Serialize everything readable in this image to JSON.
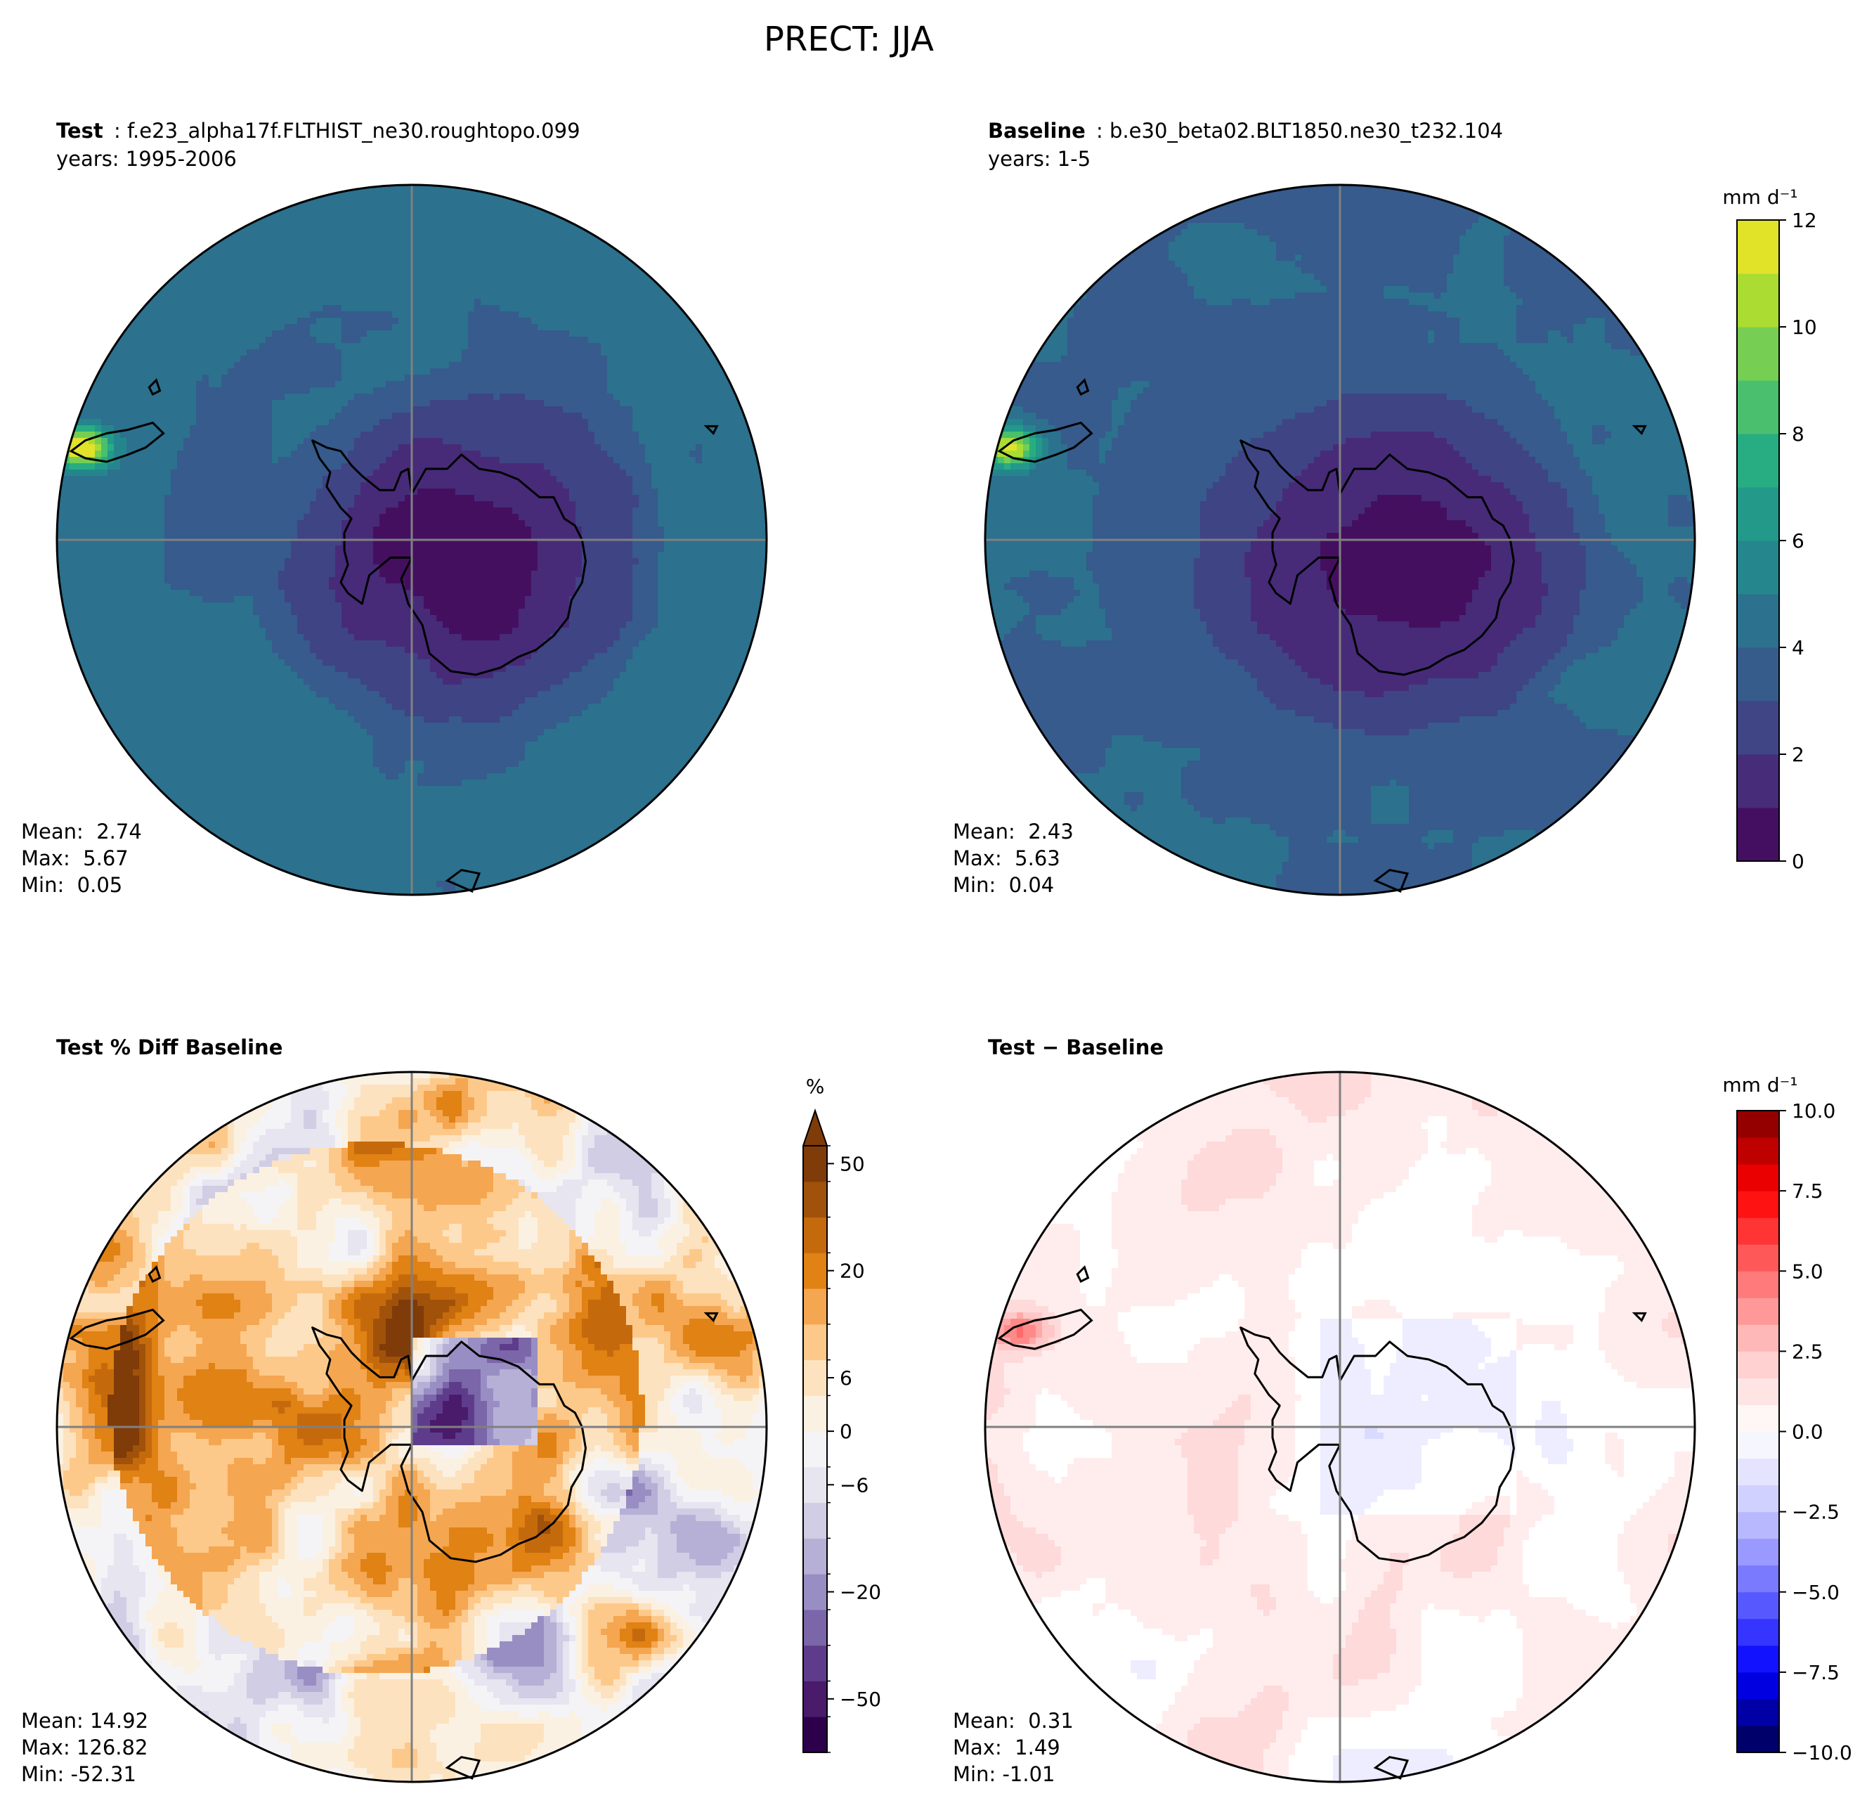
{
  "figure": {
    "title": "PRECT: JJA"
  },
  "colors": {
    "viridis": [
      "#440154",
      "#472c7a",
      "#3b518b",
      "#2c718e",
      "#21908d",
      "#27ad81",
      "#5cc863",
      "#aadc32",
      "#fde725"
    ],
    "prgn_diff": [
      "#2d004b",
      "#4a1a6b",
      "#5e3c8b",
      "#7a66a8",
      "#998ec3",
      "#b7b0d6",
      "#d0cde4",
      "#e6e5f0",
      "#f4f4f7",
      "#fbf1e2",
      "#fde2bf",
      "#fdc98a",
      "#f4a651",
      "#e08214",
      "#c56a0c",
      "#a0520a",
      "#7f3b08"
    ],
    "bwr": [
      "#00004c",
      "#0000ff",
      "#6a6aff",
      "#c8c8ff",
      "#ffffff",
      "#ffc8c8",
      "#ff6a6a",
      "#ff0000",
      "#7f0000"
    ],
    "coast": "#000000",
    "grid": "#808080"
  },
  "panels": [
    {
      "id": "test",
      "label_bold": "Test",
      "label_text": "f.e23_alpha17f.FLTHIST_ne30.roughtopo.099",
      "years": "years: 1995-2006",
      "stats": {
        "mean": "Mean:  2.74",
        "max": "Max:  5.67",
        "min": "Min:  0.05"
      },
      "field": "test"
    },
    {
      "id": "baseline",
      "label_bold": "Baseline",
      "label_text": "b.e30_beta02.BLT1850.ne30_t232.104",
      "years": "years: 1-5",
      "stats": {
        "mean": "Mean:  2.43",
        "max": "Max:  5.63",
        "min": "Min:  0.04"
      },
      "field": "baseline"
    },
    {
      "id": "pctdiff",
      "label_bold": "Test % Diff Baseline",
      "label_text": "",
      "years": "",
      "stats": {
        "mean": "Mean: 14.92",
        "max": "Max: 126.82",
        "min": "Min: -52.31"
      },
      "field": "pctdiff"
    },
    {
      "id": "diff",
      "label_bold": "Test",
      "label_text": "Baseline",
      "years": "",
      "stats": {
        "mean": "Mean:  0.31",
        "max": "Max:  1.49",
        "min": "Min: -1.01"
      },
      "field": "diff"
    }
  ],
  "colorbars": [
    {
      "id": "cb-abs",
      "units": "mm d⁻¹",
      "range": [
        0,
        12
      ],
      "ticks": [
        0,
        2,
        4,
        6,
        8,
        10,
        12
      ],
      "tick_labels": [
        "0",
        "2",
        "4",
        "6",
        "8",
        "10",
        "12"
      ],
      "levels": 12
    },
    {
      "id": "cb-pct",
      "units": "%",
      "tick_labels": [
        "−50",
        "−20",
        "−6",
        "0",
        "6",
        "20",
        "50"
      ],
      "extend": "max"
    },
    {
      "id": "cb-diff",
      "units": "mm d⁻¹",
      "range": [
        -10,
        10
      ],
      "ticks": [
        -10,
        -7.5,
        -5,
        -2.5,
        0,
        2.5,
        5,
        7.5,
        10
      ],
      "tick_labels": [
        "−10.0",
        "−7.5",
        "−5.0",
        "−2.5",
        "0.0",
        "2.5",
        "5.0",
        "7.5",
        "10.0"
      ],
      "levels": 24
    }
  ],
  "chart_data": [
    {
      "type": "heatmap",
      "title": "Test : f.e23_alpha17f.FLTHIST_ne30.roughtopo.099",
      "projection": "south polar stereographic",
      "variable": "PRECT",
      "season": "JJA",
      "units": "mm d-1",
      "mean": 2.74,
      "max": 5.67,
      "min": 0.05,
      "colorbar_range": [
        0,
        12
      ]
    },
    {
      "type": "heatmap",
      "title": "Baseline : b.e30_beta02.BLT1850.ne30_t232.104",
      "projection": "south polar stereographic",
      "variable": "PRECT",
      "season": "JJA",
      "units": "mm d-1",
      "mean": 2.43,
      "max": 5.63,
      "min": 0.04,
      "colorbar_range": [
        0,
        12
      ]
    },
    {
      "type": "heatmap",
      "title": "Test % Diff Baseline",
      "projection": "south polar stereographic",
      "units": "%",
      "mean": 14.92,
      "max": 126.82,
      "min": -52.31,
      "colorbar_ticks": [
        -50,
        -20,
        -6,
        0,
        6,
        20,
        50
      ]
    },
    {
      "type": "heatmap",
      "title": "Test - Baseline",
      "projection": "south polar stereographic",
      "units": "mm d-1",
      "mean": 0.31,
      "max": 1.49,
      "min": -1.01,
      "colorbar_range": [
        -10,
        10
      ]
    }
  ]
}
